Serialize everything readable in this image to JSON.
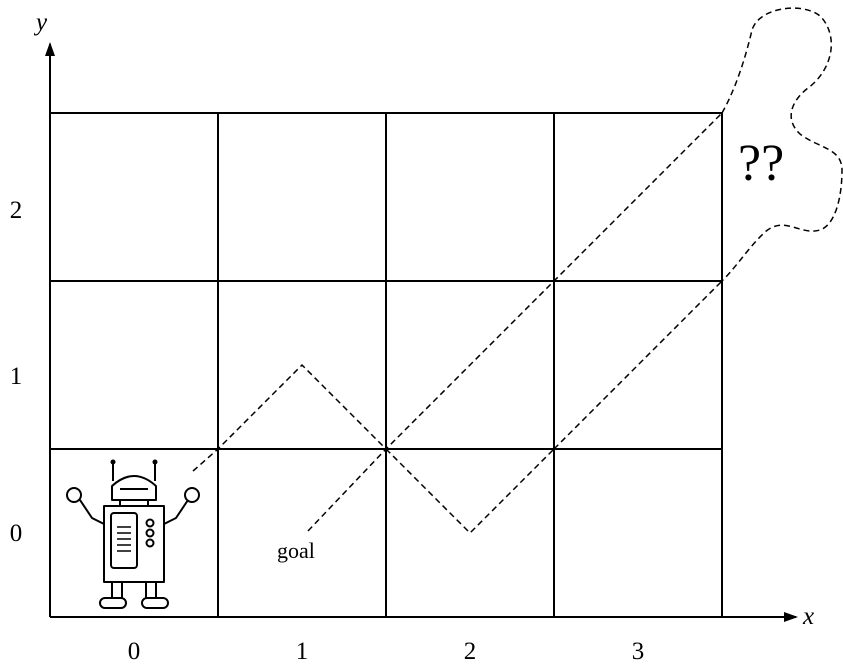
{
  "axes": {
    "x_label": "x",
    "y_label": "y",
    "x_ticks": [
      "0",
      "1",
      "2",
      "3"
    ],
    "y_ticks": [
      "0",
      "1",
      "2"
    ]
  },
  "annotations": {
    "goal": "goal",
    "unknown": "??"
  },
  "grid": {
    "columns": 4,
    "rows": 3
  },
  "robot": {
    "cell": [
      0,
      0
    ]
  },
  "line_color": "#000000"
}
